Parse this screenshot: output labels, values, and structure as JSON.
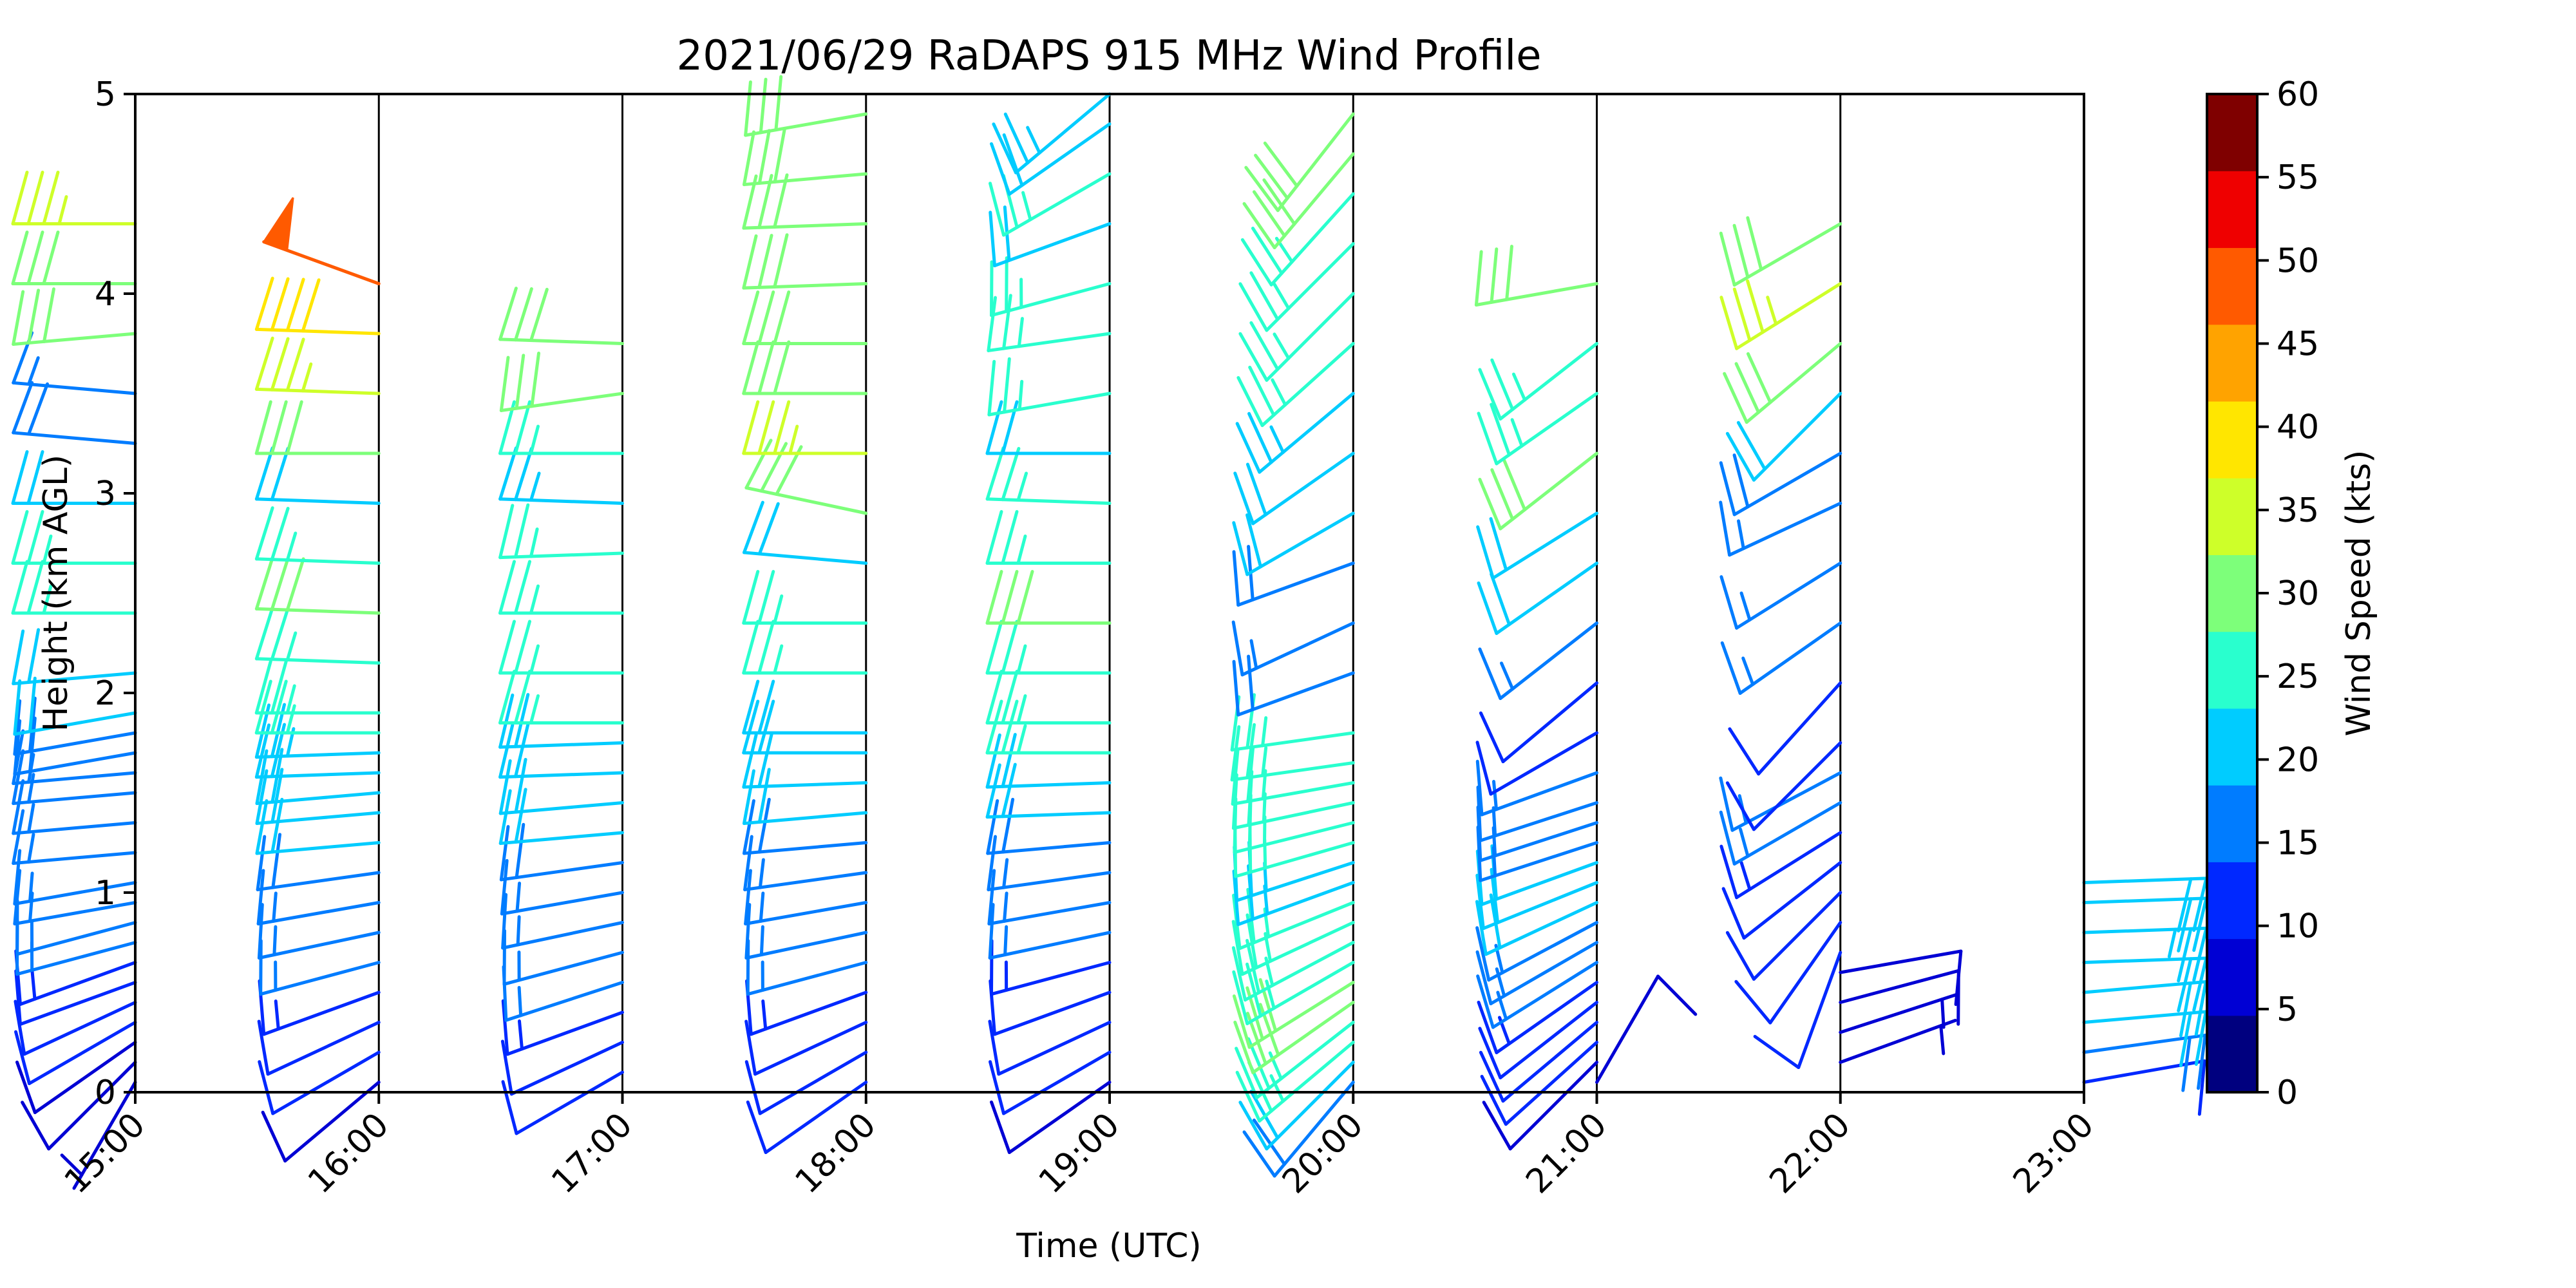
{
  "chart_data": {
    "type": "wind_barb_profile",
    "title": "2021/06/29 RaDAPS 915 MHz Wind Profile",
    "xlabel": "Time (UTC)",
    "ylabel": "Height (km AGL)",
    "x_ticks": [
      "15:00",
      "16:00",
      "17:00",
      "18:00",
      "19:00",
      "20:00",
      "21:00",
      "22:00",
      "23:00"
    ],
    "xlim": [
      "15:00",
      "23:00"
    ],
    "y_ticks": [
      "0",
      "1",
      "2",
      "3",
      "4",
      "5"
    ],
    "ylim": [
      0,
      5
    ],
    "colorbar": {
      "label": "Wind Speed (kts)",
      "ticks": [
        "0",
        "5",
        "10",
        "15",
        "20",
        "25",
        "30",
        "35",
        "40",
        "45",
        "50",
        "55",
        "60"
      ],
      "range": [
        0,
        60
      ],
      "colors": [
        "#00007f",
        "#0000d4",
        "#0028ff",
        "#007cff",
        "#00ccff",
        "#29ffce",
        "#7dff7a",
        "#ceff29",
        "#ffe600",
        "#ffa300",
        "#ff5a00",
        "#ef0000",
        "#7f0000"
      ]
    },
    "time_markers": [
      "16:00",
      "17:00",
      "18:00",
      "19:00",
      "20:00",
      "21:00",
      "22:00"
    ],
    "profiles": [
      {
        "time": "15:00",
        "heights": [
          0.05,
          0.15,
          0.25,
          0.35,
          0.45,
          0.55,
          0.65,
          0.75,
          0.85,
          0.95,
          1.05,
          1.2,
          1.35,
          1.5,
          1.6,
          1.7,
          1.8,
          1.9,
          2.1,
          2.4,
          2.65,
          2.95,
          3.25,
          3.5,
          3.8,
          4.05,
          4.35
        ],
        "speeds_kts": [
          6,
          8,
          9,
          10,
          11,
          12,
          13,
          14,
          15,
          16,
          16,
          17,
          17,
          17,
          17,
          18,
          18,
          19,
          21,
          24,
          26,
          22,
          18,
          17,
          28,
          30,
          33
        ],
        "dirs_deg": [
          210,
          225,
          235,
          240,
          245,
          250,
          250,
          255,
          255,
          260,
          260,
          265,
          265,
          265,
          265,
          260,
          260,
          260,
          265,
          270,
          270,
          270,
          275,
          275,
          265,
          270,
          270
        ]
      },
      {
        "time": "16:00",
        "heights": [
          0.05,
          0.2,
          0.35,
          0.5,
          0.65,
          0.8,
          0.95,
          1.1,
          1.25,
          1.4,
          1.5,
          1.6,
          1.7,
          1.8,
          1.9,
          2.15,
          2.4,
          2.65,
          2.95,
          3.2,
          3.5,
          3.8,
          4.05
        ],
        "speeds_kts": [
          8,
          10,
          12,
          13,
          14,
          15,
          16,
          18,
          19,
          20,
          21,
          22,
          23,
          24,
          26,
          27,
          28,
          27,
          20,
          30,
          33,
          38,
          50
        ],
        "dirs_deg": [
          230,
          240,
          245,
          250,
          255,
          258,
          260,
          262,
          265,
          265,
          265,
          268,
          268,
          270,
          270,
          272,
          272,
          272,
          272,
          270,
          272,
          272,
          290
        ]
      },
      {
        "time": "17:00",
        "heights": [
          0.1,
          0.25,
          0.4,
          0.55,
          0.7,
          0.85,
          1.0,
          1.15,
          1.3,
          1.45,
          1.6,
          1.75,
          1.85,
          2.1,
          2.4,
          2.7,
          2.95,
          3.2,
          3.5,
          3.75
        ],
        "speeds_kts": [
          10,
          12,
          13,
          14,
          15,
          16,
          17,
          18,
          19,
          20,
          21,
          22,
          24,
          26,
          27,
          25,
          23,
          27,
          31,
          28
        ],
        "dirs_deg": [
          240,
          245,
          250,
          252,
          255,
          258,
          260,
          262,
          265,
          265,
          268,
          268,
          270,
          270,
          270,
          268,
          272,
          270,
          262,
          272
        ]
      },
      {
        "time": "18:00",
        "heights": [
          0.05,
          0.2,
          0.35,
          0.5,
          0.65,
          0.8,
          0.95,
          1.1,
          1.25,
          1.4,
          1.55,
          1.7,
          1.8,
          2.1,
          2.35,
          2.65,
          2.9,
          3.2,
          3.5,
          3.75,
          4.05,
          4.35,
          4.6,
          4.9
        ],
        "speeds_kts": [
          10,
          11,
          12,
          13,
          14,
          15,
          16,
          17,
          18,
          19,
          20,
          21,
          22,
          24,
          24,
          22,
          31,
          33,
          32,
          31,
          30,
          30,
          28,
          29
        ],
        "dirs_deg": [
          235,
          240,
          245,
          250,
          255,
          258,
          260,
          262,
          265,
          265,
          268,
          270,
          270,
          270,
          270,
          275,
          282,
          270,
          270,
          270,
          268,
          268,
          265,
          260
        ]
      },
      {
        "time": "19:00",
        "heights": [
          0.05,
          0.2,
          0.35,
          0.5,
          0.65,
          0.8,
          0.95,
          1.1,
          1.25,
          1.4,
          1.55,
          1.7,
          1.85,
          2.1,
          2.35,
          2.65,
          2.95,
          3.2,
          3.5,
          3.8,
          4.05,
          4.35,
          4.6,
          4.85,
          5.0
        ],
        "speeds_kts": [
          9,
          10,
          11,
          12,
          13,
          14,
          15,
          16,
          18,
          20,
          22,
          24,
          26,
          27,
          28,
          27,
          24,
          22,
          26,
          27,
          24,
          22,
          24,
          22,
          23
        ],
        "dirs_deg": [
          235,
          240,
          245,
          250,
          255,
          258,
          260,
          262,
          265,
          268,
          268,
          270,
          270,
          270,
          270,
          270,
          272,
          270,
          260,
          262,
          255,
          250,
          240,
          235,
          230
        ]
      },
      {
        "time": "20:00",
        "heights": [
          0.05,
          0.15,
          0.25,
          0.35,
          0.45,
          0.55,
          0.65,
          0.75,
          0.85,
          0.95,
          1.05,
          1.15,
          1.25,
          1.35,
          1.45,
          1.55,
          1.65,
          1.8,
          2.1,
          2.35,
          2.65,
          2.9,
          3.2,
          3.5,
          3.75,
          4.0,
          4.25,
          4.5,
          4.7,
          4.9
        ],
        "speeds_kts": [
          18,
          22,
          24,
          26,
          28,
          28,
          27,
          26,
          25,
          24,
          23,
          23,
          24,
          25,
          26,
          27,
          26,
          24,
          18,
          16,
          18,
          20,
          22,
          23,
          24,
          25,
          24,
          26,
          28,
          30
        ],
        "dirs_deg": [
          220,
          225,
          230,
          232,
          235,
          238,
          240,
          242,
          245,
          248,
          250,
          252,
          254,
          256,
          258,
          260,
          262,
          262,
          250,
          245,
          250,
          240,
          235,
          230,
          228,
          225,
          225,
          222,
          220,
          218
        ]
      },
      {
        "time": "21:00",
        "heights": [
          0.05,
          0.15,
          0.25,
          0.35,
          0.45,
          0.55,
          0.65,
          0.75,
          0.85,
          0.95,
          1.05,
          1.15,
          1.25,
          1.35,
          1.45,
          1.6,
          1.8,
          2.05,
          2.35,
          2.65,
          2.9,
          3.2,
          3.5,
          3.75,
          4.05
        ],
        "speeds_kts": [
          8,
          9,
          10,
          11,
          12,
          13,
          14,
          15,
          17,
          19,
          21,
          19,
          17,
          16,
          17,
          15,
          12,
          12,
          17,
          20,
          21,
          28,
          26,
          24,
          32
        ],
        "dirs_deg": [
          30,
          225,
          228,
          230,
          232,
          235,
          238,
          240,
          242,
          245,
          248,
          250,
          252,
          252,
          252,
          250,
          240,
          230,
          232,
          235,
          238,
          232,
          235,
          232,
          260
        ]
      },
      {
        "time": "22:00",
        "heights": [
          0.15,
          0.3,
          0.45,
          0.6,
          0.7,
          0.85,
          1.0,
          1.15,
          1.3,
          1.45,
          1.6,
          1.75,
          2.05,
          2.35,
          2.65,
          2.95,
          3.2,
          3.5,
          3.75,
          4.05,
          4.35
        ],
        "speeds_kts": [
          6,
          7,
          8,
          9,
          10,
          10,
          11,
          12,
          13,
          14,
          15,
          12,
          11,
          17,
          16,
          17,
          18,
          22,
          29,
          33,
          30
        ],
        "dirs_deg": [
          70,
          72,
          75,
          80,
          200,
          215,
          225,
          232,
          238,
          240,
          242,
          225,
          222,
          235,
          238,
          245,
          240,
          225,
          230,
          238,
          240
        ]
      },
      {
        "time": "23:00",
        "heights": [
          0.05,
          0.2,
          0.35,
          0.5,
          0.65,
          0.8,
          0.95,
          1.05
        ],
        "speeds_kts": [
          12,
          18,
          20,
          21,
          22,
          23,
          22,
          20
        ],
        "dirs_deg": [
          80,
          82,
          85,
          85,
          88,
          88,
          88,
          88
        ]
      }
    ]
  }
}
